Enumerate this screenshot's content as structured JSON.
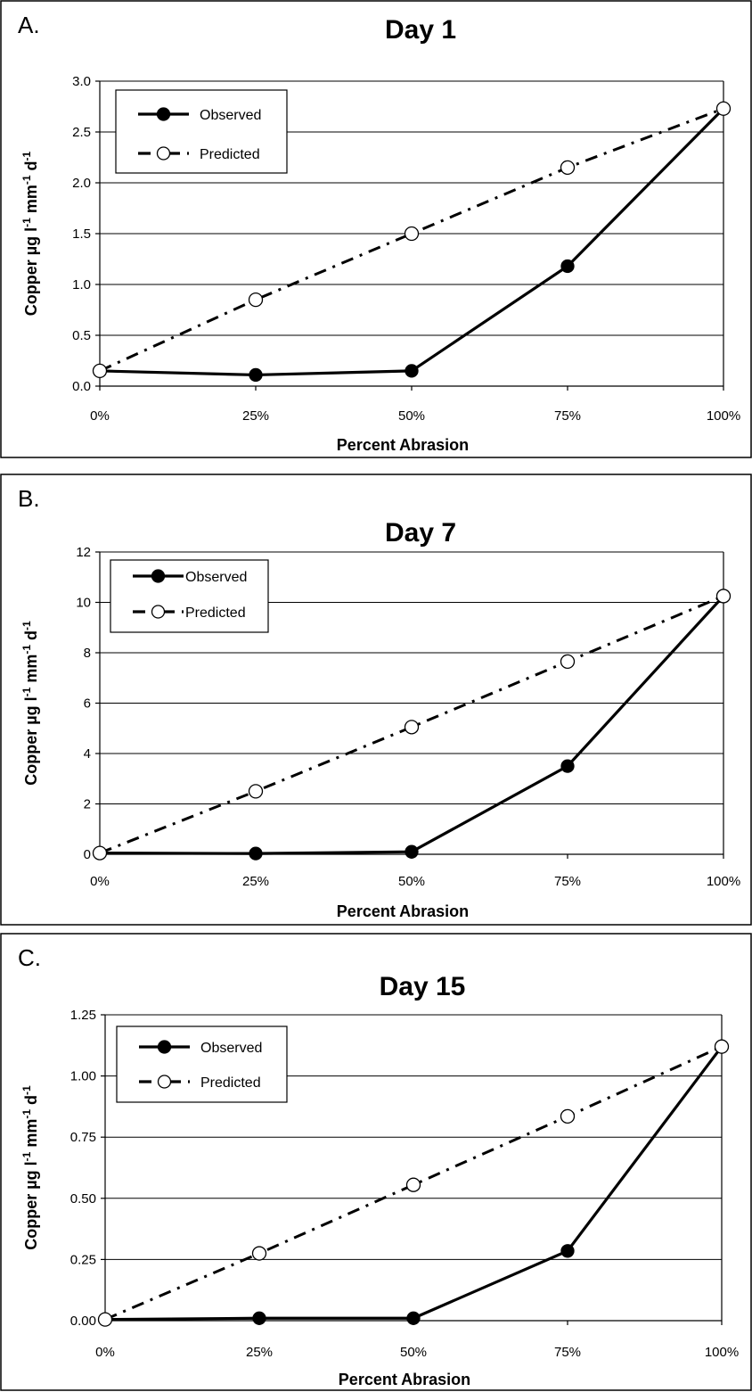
{
  "chart_data": [
    {
      "type": "line",
      "panel_label": "A.",
      "title": "Day 1",
      "xlabel": "Percent Abrasion",
      "ylabel": "Copper µg l-1 mm-1 d-1",
      "ylabel_parts": {
        "base": "Copper µg l",
        "sup1": "-1",
        "mid": " mm",
        "sup2": "-1",
        "mid2": " d",
        "sup3": "-1"
      },
      "categories": [
        "0%",
        "25%",
        "50%",
        "75%",
        "100%"
      ],
      "yticks": [
        "0.0",
        "0.5",
        "1.0",
        "1.5",
        "2.0",
        "2.5",
        "3.0"
      ],
      "ylim": [
        0,
        3
      ],
      "grid": true,
      "legend_position": "top-left",
      "series": [
        {
          "name": "Observed",
          "style": "solid-filled",
          "values": [
            0.15,
            0.11,
            0.15,
            1.18,
            2.73
          ]
        },
        {
          "name": "Predicted",
          "style": "dashdot-open",
          "values": [
            0.15,
            0.85,
            1.5,
            2.15,
            2.73
          ]
        }
      ]
    },
    {
      "type": "line",
      "panel_label": "B.",
      "title": "Day 7",
      "xlabel": "Percent Abrasion",
      "ylabel": "Copper µg l-1 mm-1 d-1",
      "ylabel_parts": {
        "base": "Copper µg l",
        "sup1": "-1",
        "mid": " mm",
        "sup2": "-1",
        "mid2": " d",
        "sup3": "-1"
      },
      "categories": [
        "0%",
        "25%",
        "50%",
        "75%",
        "100%"
      ],
      "yticks": [
        "0",
        "2",
        "4",
        "6",
        "8",
        "10",
        "12"
      ],
      "ylim": [
        0,
        12
      ],
      "grid": true,
      "legend_position": "top-left",
      "series": [
        {
          "name": "Observed",
          "style": "solid-filled",
          "values": [
            0.05,
            0.03,
            0.1,
            3.5,
            10.25
          ]
        },
        {
          "name": "Predicted",
          "style": "dashdot-open",
          "values": [
            0.05,
            2.5,
            5.05,
            7.65,
            10.25
          ]
        }
      ]
    },
    {
      "type": "line",
      "panel_label": "C.",
      "title": "Day 15",
      "xlabel": "Percent Abrasion",
      "ylabel": "Copper µg l-1 mm-1 d-1",
      "ylabel_parts": {
        "base": "Copper µg l",
        "sup1": "-1",
        "mid": " mm",
        "sup2": "-1",
        "mid2": " d",
        "sup3": "-1"
      },
      "categories": [
        "0%",
        "25%",
        "50%",
        "75%",
        "100%"
      ],
      "yticks": [
        "0.00",
        "0.25",
        "0.50",
        "0.75",
        "1.00",
        "1.25"
      ],
      "ylim": [
        0,
        1.25
      ],
      "grid": true,
      "legend_position": "top-left",
      "series": [
        {
          "name": "Observed",
          "style": "solid-filled",
          "values": [
            0.005,
            0.01,
            0.01,
            0.285,
            1.12
          ]
        },
        {
          "name": "Predicted",
          "style": "dashdot-open",
          "values": [
            0.005,
            0.275,
            0.555,
            0.835,
            1.12
          ]
        }
      ]
    }
  ]
}
